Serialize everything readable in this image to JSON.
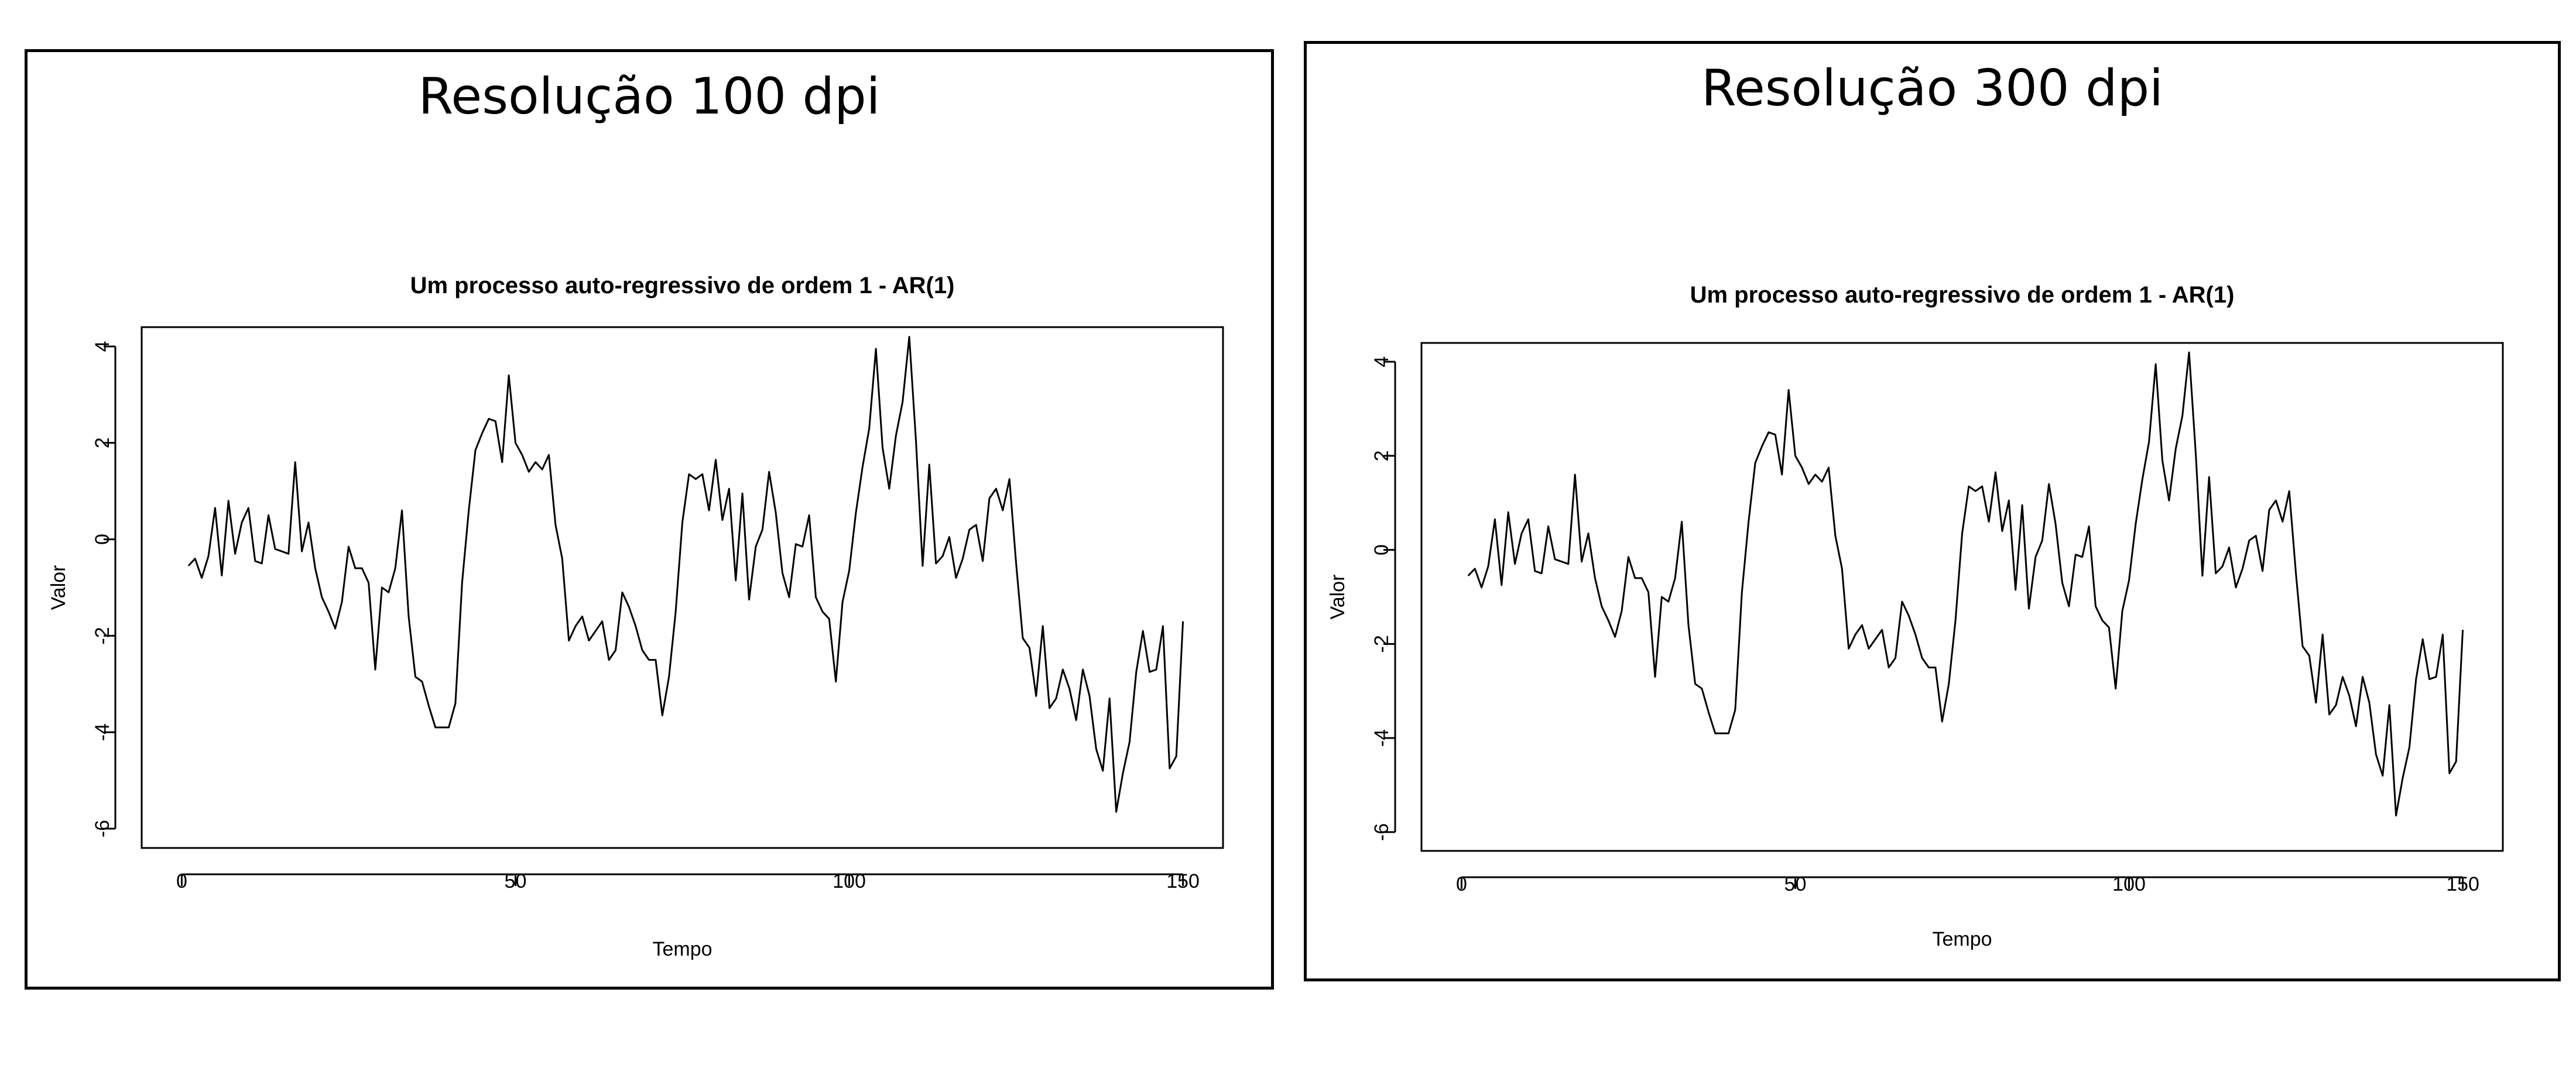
{
  "panels": [
    {
      "title": "Resolução 100 dpi",
      "chart_data": {
        "type": "line",
        "title": "Um processo auto-regressivo de ordem 1 - AR(1)",
        "xlabel": "Tempo",
        "ylabel": "Valor",
        "xlim": [
          0,
          150
        ],
        "ylim": [
          -6,
          4
        ],
        "xticks": [
          "0",
          "50",
          "100",
          "150"
        ],
        "yticks": [
          "-6",
          "-4",
          "-2",
          "0",
          "2",
          "4"
        ],
        "grid": false,
        "x_start": 1,
        "values": [
          -0.55,
          -0.4,
          -0.8,
          -0.35,
          0.65,
          -0.75,
          0.8,
          -0.3,
          0.35,
          0.65,
          -0.45,
          -0.5,
          0.5,
          -0.2,
          -0.25,
          -0.3,
          1.6,
          -0.25,
          0.35,
          -0.6,
          -1.2,
          -1.5,
          -1.85,
          -1.3,
          -0.15,
          -0.6,
          -0.6,
          -0.9,
          -2.7,
          -1.0,
          -1.1,
          -0.6,
          0.6,
          -1.6,
          -2.85,
          -2.95,
          -3.45,
          -3.9,
          -3.9,
          -3.9,
          -3.4,
          -0.9,
          0.6,
          1.85,
          2.2,
          2.5,
          2.45,
          1.6,
          3.4,
          2.0,
          1.75,
          1.4,
          1.6,
          1.45,
          1.75,
          0.3,
          -0.4,
          -2.1,
          -1.8,
          -1.6,
          -2.1,
          -1.9,
          -1.7,
          -2.5,
          -2.3,
          -1.1,
          -1.4,
          -1.8,
          -2.3,
          -2.5,
          -2.5,
          -3.65,
          -2.85,
          -1.5,
          0.35,
          1.35,
          1.25,
          1.35,
          0.6,
          1.65,
          0.4,
          1.05,
          -0.85,
          0.95,
          -1.25,
          -0.15,
          0.2,
          1.4,
          0.55,
          -0.7,
          -1.2,
          -0.1,
          -0.15,
          0.5,
          -1.2,
          -1.5,
          -1.65,
          -2.95,
          -1.3,
          -0.65,
          0.55,
          1.5,
          2.3,
          3.95,
          1.9,
          1.05,
          2.15,
          2.85,
          4.2,
          2.05,
          -0.55,
          1.55,
          -0.5,
          -0.35,
          0.05,
          -0.8,
          -0.4,
          0.2,
          0.3,
          -0.45,
          0.85,
          1.05,
          0.6,
          1.25,
          -0.5,
          -2.05,
          -2.25,
          -3.25,
          -1.8,
          -3.5,
          -3.3,
          -2.7,
          -3.1,
          -3.75,
          -2.7,
          -3.25,
          -4.35,
          -4.8,
          -3.3,
          -5.65,
          -4.85,
          -4.2,
          -2.75,
          -1.9,
          -2.75,
          -2.7,
          -1.8,
          -4.75,
          -4.5,
          -1.7
        ]
      }
    },
    {
      "title": "Resolução 300 dpi",
      "chart_data": {
        "type": "line",
        "title": "Um processo auto-regressivo de ordem 1 - AR(1)",
        "xlabel": "Tempo",
        "ylabel": "Valor",
        "xlim": [
          0,
          150
        ],
        "ylim": [
          -6,
          4
        ],
        "xticks": [
          "0",
          "50",
          "100",
          "150"
        ],
        "yticks": [
          "-6",
          "-4",
          "-2",
          "0",
          "2",
          "4"
        ],
        "grid": false,
        "x_start": 1,
        "values": [
          -0.55,
          -0.4,
          -0.8,
          -0.35,
          0.65,
          -0.75,
          0.8,
          -0.3,
          0.35,
          0.65,
          -0.45,
          -0.5,
          0.5,
          -0.2,
          -0.25,
          -0.3,
          1.6,
          -0.25,
          0.35,
          -0.6,
          -1.2,
          -1.5,
          -1.85,
          -1.3,
          -0.15,
          -0.6,
          -0.6,
          -0.9,
          -2.7,
          -1.0,
          -1.1,
          -0.6,
          0.6,
          -1.6,
          -2.85,
          -2.95,
          -3.45,
          -3.9,
          -3.9,
          -3.9,
          -3.4,
          -0.9,
          0.6,
          1.85,
          2.2,
          2.5,
          2.45,
          1.6,
          3.4,
          2.0,
          1.75,
          1.4,
          1.6,
          1.45,
          1.75,
          0.3,
          -0.4,
          -2.1,
          -1.8,
          -1.6,
          -2.1,
          -1.9,
          -1.7,
          -2.5,
          -2.3,
          -1.1,
          -1.4,
          -1.8,
          -2.3,
          -2.5,
          -2.5,
          -3.65,
          -2.85,
          -1.5,
          0.35,
          1.35,
          1.25,
          1.35,
          0.6,
          1.65,
          0.4,
          1.05,
          -0.85,
          0.95,
          -1.25,
          -0.15,
          0.2,
          1.4,
          0.55,
          -0.7,
          -1.2,
          -0.1,
          -0.15,
          0.5,
          -1.2,
          -1.5,
          -1.65,
          -2.95,
          -1.3,
          -0.65,
          0.55,
          1.5,
          2.3,
          3.95,
          1.9,
          1.05,
          2.15,
          2.85,
          4.2,
          2.05,
          -0.55,
          1.55,
          -0.5,
          -0.35,
          0.05,
          -0.8,
          -0.4,
          0.2,
          0.3,
          -0.45,
          0.85,
          1.05,
          0.6,
          1.25,
          -0.5,
          -2.05,
          -2.25,
          -3.25,
          -1.8,
          -3.5,
          -3.3,
          -2.7,
          -3.1,
          -3.75,
          -2.7,
          -3.25,
          -4.35,
          -4.8,
          -3.3,
          -5.65,
          -4.85,
          -4.2,
          -2.75,
          -1.9,
          -2.75,
          -2.7,
          -1.8,
          -4.75,
          -4.5,
          -1.7
        ]
      }
    }
  ]
}
